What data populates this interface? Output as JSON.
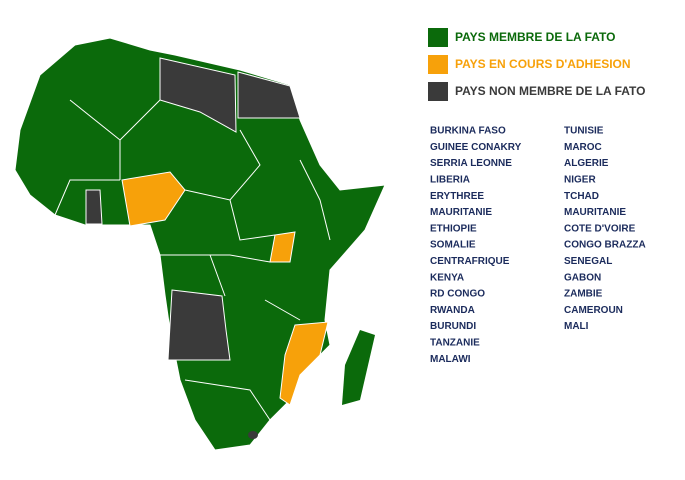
{
  "legend": [
    {
      "label": "PAYS MEMBRE DE LA FATO",
      "color": "#0b6a0b"
    },
    {
      "label": "PAYS EN COURS D'ADHESION",
      "color": "#f7a10a"
    },
    {
      "label": "PAYS NON MEMBRE DE LA FATO",
      "color": "#3a3a3a"
    }
  ],
  "countries": {
    "column_1": [
      "BURKINA FASO",
      "GUINEE CONAKRY",
      "SERRIA LEONNE",
      "LIBERIA",
      "ERYTHREE",
      "MAURITANIE",
      "ETHIOPIE",
      "SOMALIE",
      "CENTRAFRIQUE",
      "KENYA",
      "RD CONGO",
      "RWANDA",
      "BURUNDI",
      "TANZANIE",
      "MALAWI"
    ],
    "column_2": [
      "TUNISIE",
      "MAROC",
      "ALGERIE",
      "NIGER",
      "TCHAD",
      "MAURITANIE",
      "COTE D'VOIRE",
      "CONGO BRAZZA",
      "SENEGAL",
      "GABON",
      "ZAMBIE",
      "CAMEROUN",
      "MALI"
    ]
  }
}
